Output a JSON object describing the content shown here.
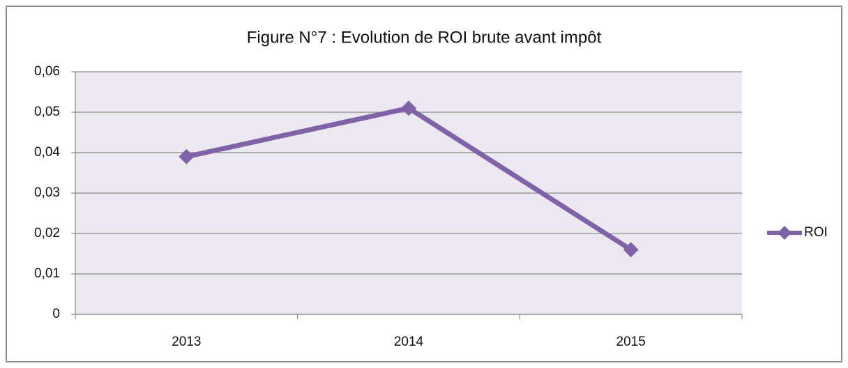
{
  "chart_data": {
    "type": "line",
    "title": "Figure N°7 : Evolution de ROI brute avant impôt",
    "categories": [
      "2013",
      "2014",
      "2015"
    ],
    "series": [
      {
        "name": "ROI",
        "color": "#7f62a8",
        "values": [
          0.039,
          0.051,
          0.016
        ]
      }
    ],
    "ylim": [
      0,
      0.06
    ],
    "yticks": [
      0,
      {
        "value": 0.01,
        "label": "0,01"
      },
      {
        "value": 0.02,
        "label": "0,02"
      },
      {
        "value": 0.03,
        "label": "0,03"
      },
      {
        "value": 0.04,
        "label": "0,04"
      },
      {
        "value": 0.05,
        "label": "0,05"
      },
      {
        "value": 0.06,
        "label": "0,06"
      }
    ],
    "grid": true,
    "legend": "right",
    "plot_background": "#ebe8ef"
  }
}
